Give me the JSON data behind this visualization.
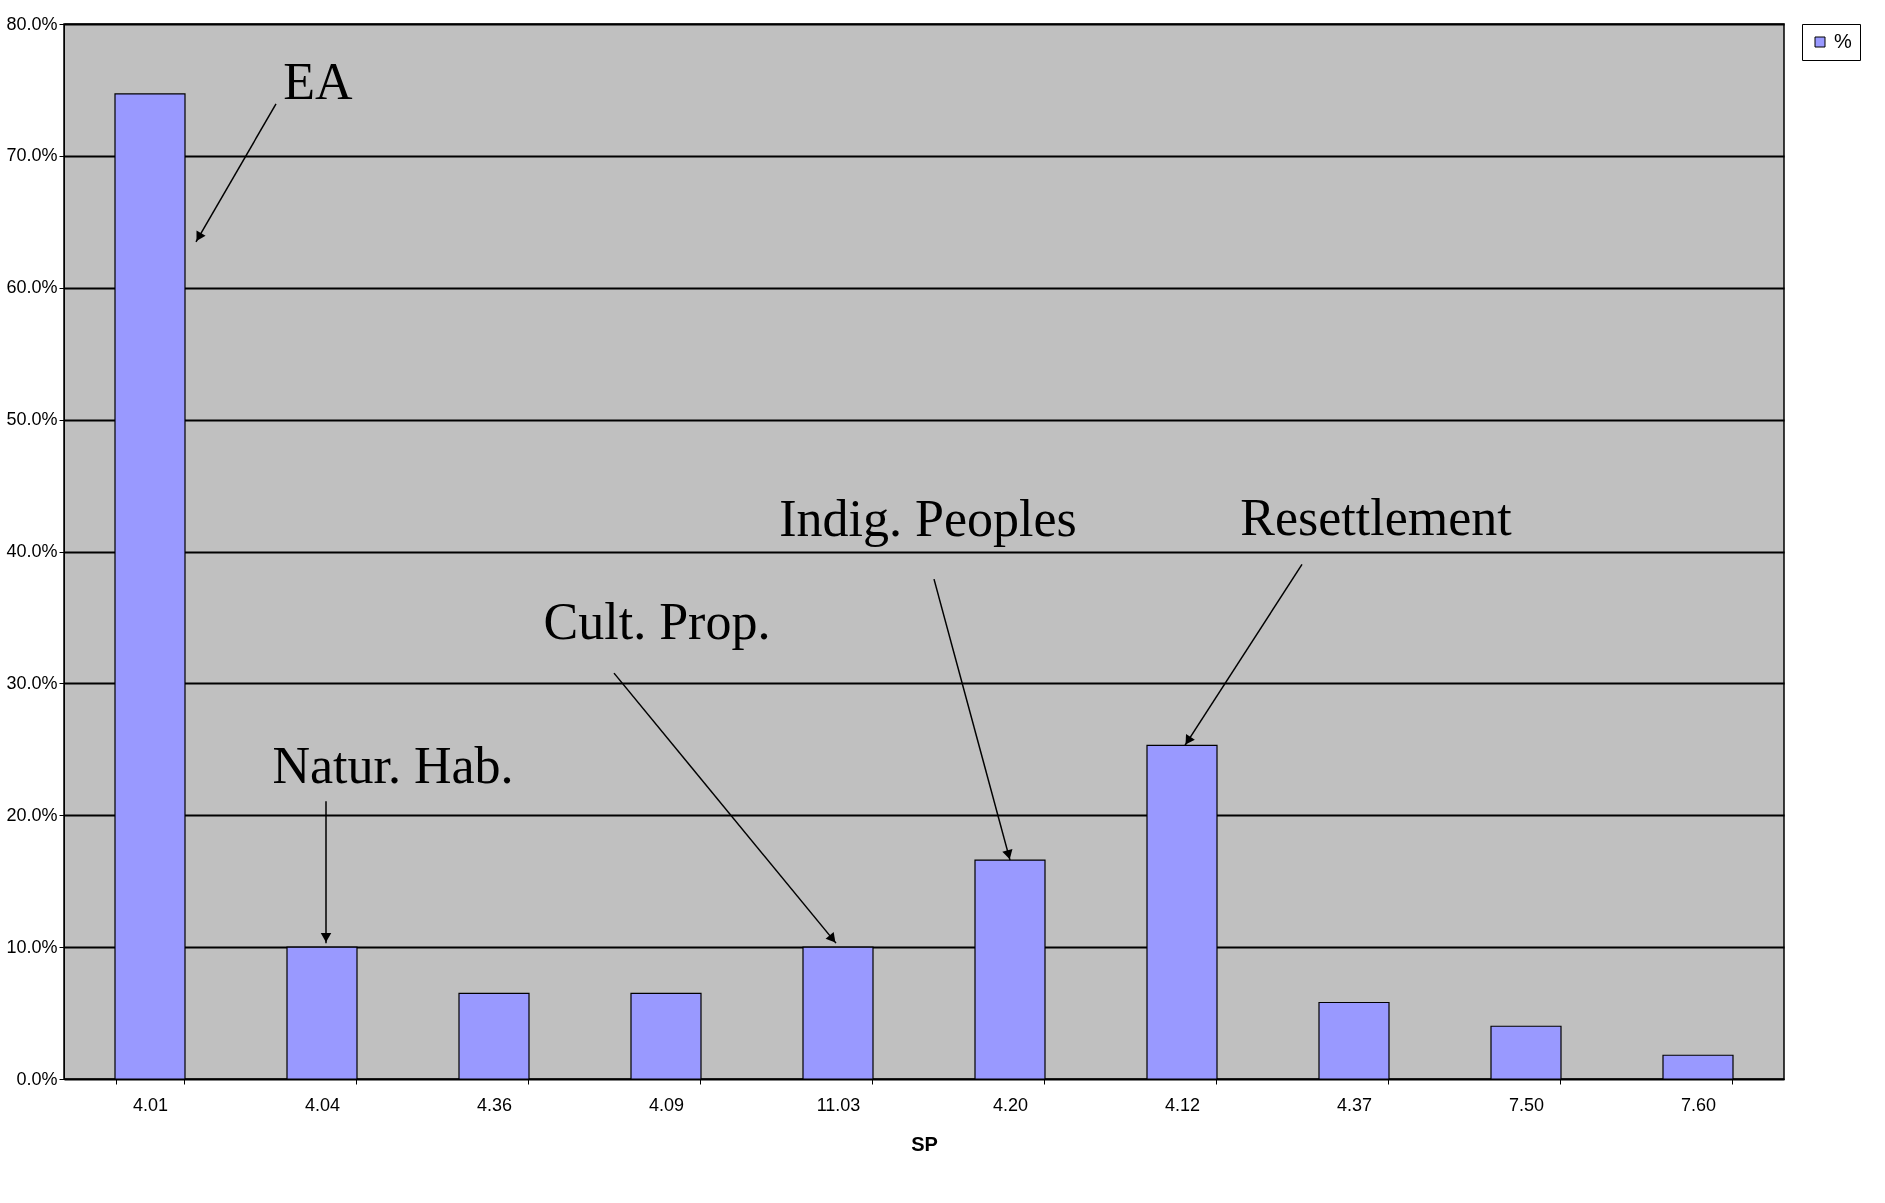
{
  "chart_data": {
    "type": "bar",
    "xlabel": "SP",
    "categories": [
      "4.01",
      "4.04",
      "4.36",
      "4.09",
      "11.03",
      "4.20",
      "4.12",
      "4.37",
      "7.50",
      "7.60"
    ],
    "series": [
      {
        "name": "%",
        "color": "#9999ff",
        "values": [
          74.7,
          10.0,
          6.5,
          6.5,
          10.0,
          16.6,
          25.3,
          5.8,
          4.0,
          1.8
        ]
      }
    ],
    "ylim": [
      0,
      80
    ],
    "yticks": [
      {
        "value": 0,
        "label": "0.0%"
      },
      {
        "value": 10,
        "label": "10.0%"
      },
      {
        "value": 20,
        "label": "20.0%"
      },
      {
        "value": 30,
        "label": "30.0%"
      },
      {
        "value": 40,
        "label": "40.0%"
      },
      {
        "value": 50,
        "label": "50.0%"
      },
      {
        "value": 60,
        "label": "60.0%"
      },
      {
        "value": 70,
        "label": "70.0%"
      },
      {
        "value": 80,
        "label": "80.0%"
      }
    ],
    "grid": "y",
    "legend": "right",
    "annotations": [
      {
        "text": "EA",
        "x": "4.01",
        "y": 74.7
      },
      {
        "text": "Natur. Hab.",
        "x": "4.04",
        "y": 10.0
      },
      {
        "text": "Cult. Prop.",
        "x": "11.03",
        "y": 10.0
      },
      {
        "text": "Indig. Peoples",
        "x": "4.20",
        "y": 16.6
      },
      {
        "text": "Resettlement",
        "x": "4.12",
        "y": 25.3
      }
    ]
  }
}
